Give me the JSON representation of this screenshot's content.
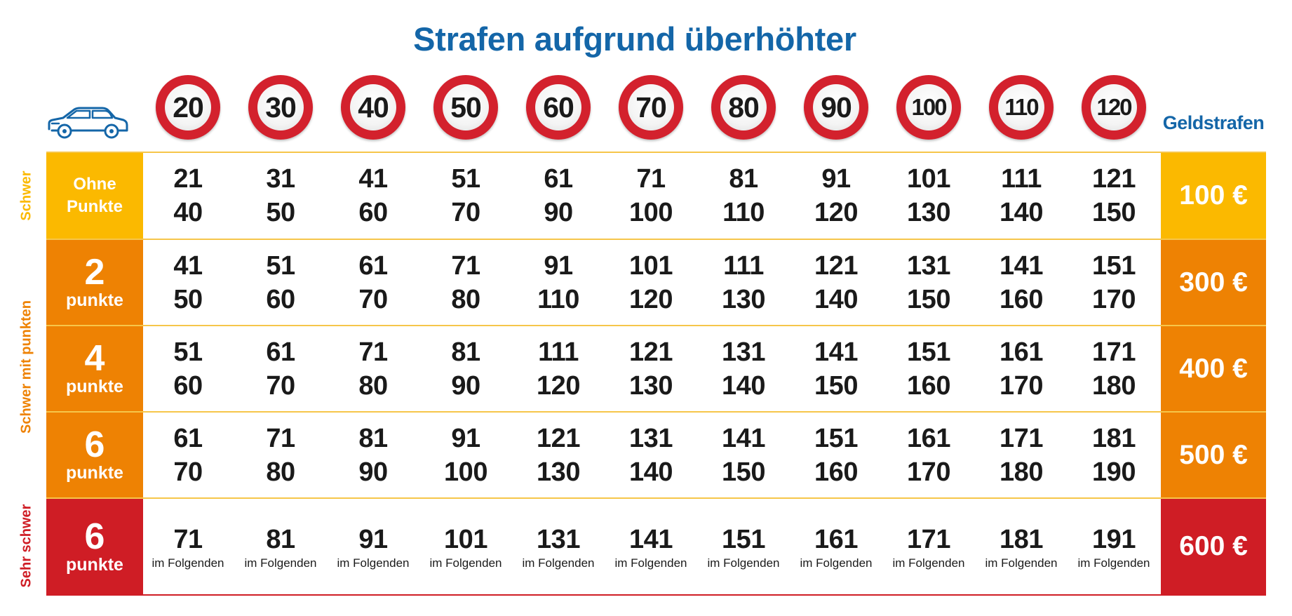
{
  "title": "Strafen aufgrund überhöhter",
  "speed_limits": [
    "20",
    "30",
    "40",
    "50",
    "60",
    "70",
    "80",
    "90",
    "100",
    "110",
    "120"
  ],
  "fines_header": "Geldstrafen",
  "side_labels": {
    "schwer": "Schwer",
    "schwer_mit_punkten": "Schwer mit punkten",
    "sehr_schwer": "Sehr schwer"
  },
  "rows": [
    {
      "label_top": "Ohne",
      "label_bottom": "Punkte",
      "fine": "100 €",
      "cells": [
        [
          "21",
          "40"
        ],
        [
          "31",
          "50"
        ],
        [
          "41",
          "60"
        ],
        [
          "51",
          "70"
        ],
        [
          "61",
          "90"
        ],
        [
          "71",
          "100"
        ],
        [
          "81",
          "110"
        ],
        [
          "91",
          "120"
        ],
        [
          "101",
          "130"
        ],
        [
          "111",
          "140"
        ],
        [
          "121",
          "150"
        ]
      ]
    },
    {
      "label_top": "2",
      "label_bottom": "punkte",
      "fine": "300 €",
      "cells": [
        [
          "41",
          "50"
        ],
        [
          "51",
          "60"
        ],
        [
          "61",
          "70"
        ],
        [
          "71",
          "80"
        ],
        [
          "91",
          "110"
        ],
        [
          "101",
          "120"
        ],
        [
          "111",
          "130"
        ],
        [
          "121",
          "140"
        ],
        [
          "131",
          "150"
        ],
        [
          "141",
          "160"
        ],
        [
          "151",
          "170"
        ]
      ]
    },
    {
      "label_top": "4",
      "label_bottom": "punkte",
      "fine": "400 €",
      "cells": [
        [
          "51",
          "60"
        ],
        [
          "61",
          "70"
        ],
        [
          "71",
          "80"
        ],
        [
          "81",
          "90"
        ],
        [
          "111",
          "120"
        ],
        [
          "121",
          "130"
        ],
        [
          "131",
          "140"
        ],
        [
          "141",
          "150"
        ],
        [
          "151",
          "160"
        ],
        [
          "161",
          "170"
        ],
        [
          "171",
          "180"
        ]
      ]
    },
    {
      "label_top": "6",
      "label_bottom": "punkte",
      "fine": "500 €",
      "cells": [
        [
          "61",
          "70"
        ],
        [
          "71",
          "80"
        ],
        [
          "81",
          "90"
        ],
        [
          "91",
          "100"
        ],
        [
          "121",
          "130"
        ],
        [
          "131",
          "140"
        ],
        [
          "141",
          "150"
        ],
        [
          "151",
          "160"
        ],
        [
          "161",
          "170"
        ],
        [
          "171",
          "180"
        ],
        [
          "181",
          "190"
        ]
      ]
    },
    {
      "label_top": "6",
      "label_bottom": "punkte",
      "fine": "600 €",
      "cells": [
        [
          "71",
          "im Folgenden"
        ],
        [
          "81",
          "im Folgenden"
        ],
        [
          "91",
          "im Folgenden"
        ],
        [
          "101",
          "im Folgenden"
        ],
        [
          "131",
          "im Folgenden"
        ],
        [
          "141",
          "im Folgenden"
        ],
        [
          "151",
          "im Folgenden"
        ],
        [
          "161",
          "im Folgenden"
        ],
        [
          "171",
          "im Folgenden"
        ],
        [
          "181",
          "im Folgenden"
        ],
        [
          "191",
          "im Folgenden"
        ]
      ]
    }
  ],
  "colors": {
    "title_blue": "#1466a8",
    "yellow": "#fbb900",
    "orange": "#ee8203",
    "red": "#cf1d25",
    "sign_red": "#d3212d",
    "car_outline": "#1466a8"
  },
  "icons": {
    "car": "car-icon",
    "speed_sign": "speed-limit-sign-icon"
  }
}
